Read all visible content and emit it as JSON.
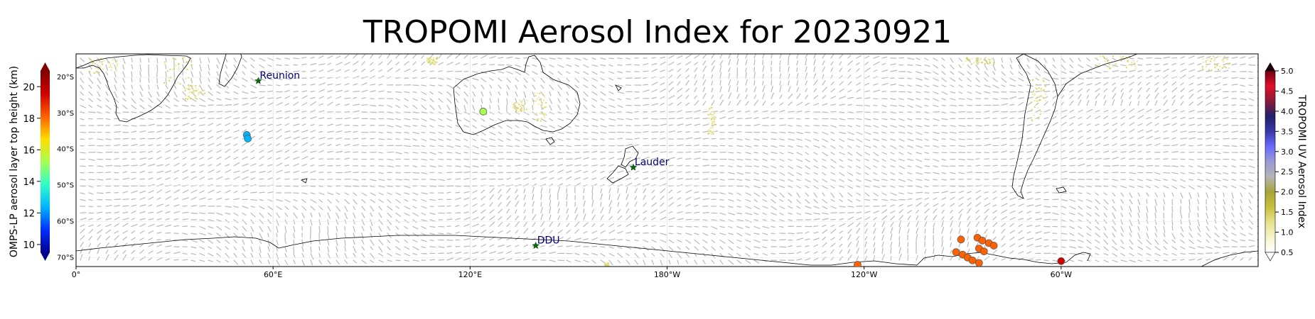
{
  "title": "TROPOMI Aerosol Index for 20230921",
  "map": {
    "lon_labels": [
      "0°",
      "60°E",
      "120°E",
      "180°W",
      "120°W",
      "60°W"
    ],
    "lat_labels": [
      "20°S",
      "30°S",
      "40°S",
      "50°S",
      "60°S",
      "70°S"
    ],
    "sites": [
      {
        "name": "Reunion",
        "lon": 55.5,
        "lat": -21
      },
      {
        "name": "Lauder",
        "lon": 169.7,
        "lat": -45
      },
      {
        "name": "DDU",
        "lon": 140,
        "lat": -66.7
      }
    ],
    "omps_points": [
      {
        "lon": 124,
        "lat": -29.5,
        "height": 15.3
      },
      {
        "lon": 52,
        "lat": -36,
        "height": 12.7
      },
      {
        "lon": 52.3,
        "lat": -37,
        "height": 12.6
      },
      {
        "lon": -122,
        "lat": -72,
        "height": 17.5
      },
      {
        "lon": -90.5,
        "lat": -65,
        "height": 17.6
      },
      {
        "lon": -85.5,
        "lat": -64.5,
        "height": 18.6
      },
      {
        "lon": -84,
        "lat": -65.3,
        "height": 18.6
      },
      {
        "lon": -82,
        "lat": -66,
        "height": 18.6
      },
      {
        "lon": -80.5,
        "lat": -66.7,
        "height": 18.6
      },
      {
        "lon": -85,
        "lat": -67.5,
        "height": 18.6
      },
      {
        "lon": -83.5,
        "lat": -68.3,
        "height": 18.6
      },
      {
        "lon": -92,
        "lat": -68.5,
        "height": 18.6
      },
      {
        "lon": -90,
        "lat": -69.2,
        "height": 18.6
      },
      {
        "lon": -88.5,
        "lat": -70,
        "height": 18.6
      },
      {
        "lon": -87,
        "lat": -70.8,
        "height": 18.6
      },
      {
        "lon": -85,
        "lat": -71.5,
        "height": 18.6
      },
      {
        "lon": -60,
        "lat": -71,
        "height": 19.8
      }
    ]
  },
  "left_colorbar": {
    "label": "OMPS-LP aerosol layer top height (km)",
    "ticks": [
      "10",
      "12",
      "14",
      "16",
      "18",
      "20"
    ],
    "colors": [
      "#00008f",
      "#0030ff",
      "#00b4ff",
      "#30ffc8",
      "#a8ff50",
      "#ffdc00",
      "#ff6000",
      "#d00000",
      "#800000"
    ]
  },
  "right_colorbar": {
    "label": "TROPOMI UV Aerosol Index",
    "ticks": [
      "0.5",
      "1.0",
      "1.5",
      "2.0",
      "2.5",
      "3.0",
      "3.5",
      "4.0",
      "4.5",
      "5.0"
    ],
    "colors": [
      "#ffffff",
      "#f6f4c8",
      "#e6e28c",
      "#c8bf3c",
      "#a8a43a",
      "#b4b4b4",
      "#9a9ad6",
      "#6a6aff",
      "#3838a8",
      "#20206a",
      "#8a1a3a",
      "#e0102a",
      "#700010"
    ]
  }
}
